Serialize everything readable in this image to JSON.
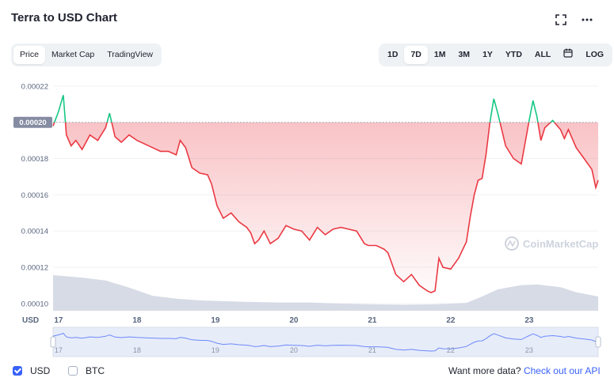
{
  "header": {
    "title": "Terra to USD Chart",
    "fullscreen_icon": "expand-icon",
    "more_icon": "more-horizontal-icon"
  },
  "view_tabs": [
    {
      "label": "Price",
      "active": true
    },
    {
      "label": "Market Cap",
      "active": false
    },
    {
      "label": "TradingView",
      "active": false
    }
  ],
  "range_tabs": [
    {
      "label": "1D",
      "active": false
    },
    {
      "label": "7D",
      "active": true
    },
    {
      "label": "1M",
      "active": false
    },
    {
      "label": "3M",
      "active": false
    },
    {
      "label": "1Y",
      "active": false
    },
    {
      "label": "YTD",
      "active": false
    },
    {
      "label": "ALL",
      "active": false
    }
  ],
  "calendar_icon": "calendar-icon",
  "log_label": "LOG",
  "watermark": "CoinMarketCap",
  "footer": {
    "currencies": [
      {
        "label": "USD",
        "checked": true
      },
      {
        "label": "BTC",
        "checked": false
      }
    ],
    "more_data_text": "Want more data?",
    "api_link": "Check out our API"
  },
  "colors": {
    "up": "#16c784",
    "down": "#ea3943",
    "accent": "#3861fb",
    "volume": "#d1d7e3"
  },
  "chart_data": {
    "type": "line",
    "title": "",
    "xlabel": "USD",
    "ylabel": "",
    "x_ticks": [
      "17",
      "18",
      "19",
      "20",
      "21",
      "22",
      "23"
    ],
    "y_ticks": [
      "0.00022",
      "0.00020",
      "0.00018",
      "0.00016",
      "0.00014",
      "0.00012",
      "0.00010"
    ],
    "ylim": [
      9.6e-05,
      0.000223
    ],
    "xlim": [
      16.93,
      23.88
    ],
    "baseline_value": 0.0002,
    "baseline_label": "0.00020",
    "grid": true,
    "series": [
      {
        "x": [
          16.93,
          17.0,
          17.06,
          17.1,
          17.16,
          17.22,
          17.3,
          17.4,
          17.5,
          17.6,
          17.65,
          17.72,
          17.8,
          17.9,
          18.0,
          18.1,
          18.2,
          18.3,
          18.4,
          18.5,
          18.55,
          18.62,
          18.7,
          18.8,
          18.9,
          18.95,
          19.02,
          19.1,
          19.2,
          19.3,
          19.4,
          19.45,
          19.5,
          19.55,
          19.62,
          19.7,
          19.8,
          19.9,
          20.0,
          20.1,
          20.2,
          20.3,
          20.4,
          20.5,
          20.6,
          20.7,
          20.8,
          20.9,
          20.95,
          21.05,
          21.15,
          21.2,
          21.3,
          21.4,
          21.5,
          21.6,
          21.7,
          21.75,
          21.8,
          21.85,
          21.9,
          22.0,
          22.1,
          22.2,
          22.25,
          22.3,
          22.35,
          22.4,
          22.45,
          22.5,
          22.55,
          22.6,
          22.7,
          22.8,
          22.9,
          23.0,
          23.05,
          23.1,
          23.15,
          23.2,
          23.3,
          23.4,
          23.45,
          23.5,
          23.6,
          23.7,
          23.8,
          23.85,
          23.88
        ],
        "y": [
          0.000198,
          0.000206,
          0.000215,
          0.000193,
          0.000187,
          0.00019,
          0.000185,
          0.000193,
          0.00019,
          0.000197,
          0.000205,
          0.000192,
          0.000189,
          0.000193,
          0.00019,
          0.000188,
          0.000186,
          0.000184,
          0.000184,
          0.000182,
          0.00019,
          0.000186,
          0.000175,
          0.000172,
          0.000171,
          0.000166,
          0.000154,
          0.000147,
          0.00015,
          0.000145,
          0.000142,
          0.000139,
          0.000133,
          0.000135,
          0.00014,
          0.000133,
          0.000136,
          0.000143,
          0.000141,
          0.00014,
          0.000135,
          0.000142,
          0.000138,
          0.000141,
          0.000142,
          0.000141,
          0.00014,
          0.000133,
          0.000132,
          0.000132,
          0.00013,
          0.000128,
          0.000116,
          0.000112,
          0.000116,
          0.00011,
          0.000107,
          0.000106,
          0.000107,
          0.000125,
          0.00012,
          0.000119,
          0.000125,
          0.000134,
          0.000148,
          0.00016,
          0.000168,
          0.000169,
          0.000182,
          0.0002,
          0.000213,
          0.000205,
          0.000187,
          0.00018,
          0.000177,
          0.000201,
          0.000212,
          0.000203,
          0.00019,
          0.000197,
          0.000201,
          0.000196,
          0.000191,
          0.000196,
          0.000186,
          0.00018,
          0.000174,
          0.000164,
          0.000168
        ]
      }
    ],
    "volume": {
      "x": [
        16.93,
        17.3,
        17.6,
        17.9,
        18.2,
        18.5,
        18.8,
        19.1,
        19.4,
        19.8,
        20.2,
        20.6,
        21.0,
        21.4,
        21.8,
        22.2,
        22.4,
        22.6,
        22.9,
        23.1,
        23.4,
        23.6,
        23.88
      ],
      "y": [
        1.0,
        0.93,
        0.85,
        0.65,
        0.42,
        0.34,
        0.29,
        0.27,
        0.25,
        0.23,
        0.23,
        0.2,
        0.18,
        0.17,
        0.18,
        0.22,
        0.4,
        0.6,
        0.72,
        0.74,
        0.66,
        0.52,
        0.4
      ]
    },
    "navigator_x_ticks": [
      "17",
      "18",
      "19",
      "20",
      "21",
      "22",
      "23"
    ]
  }
}
